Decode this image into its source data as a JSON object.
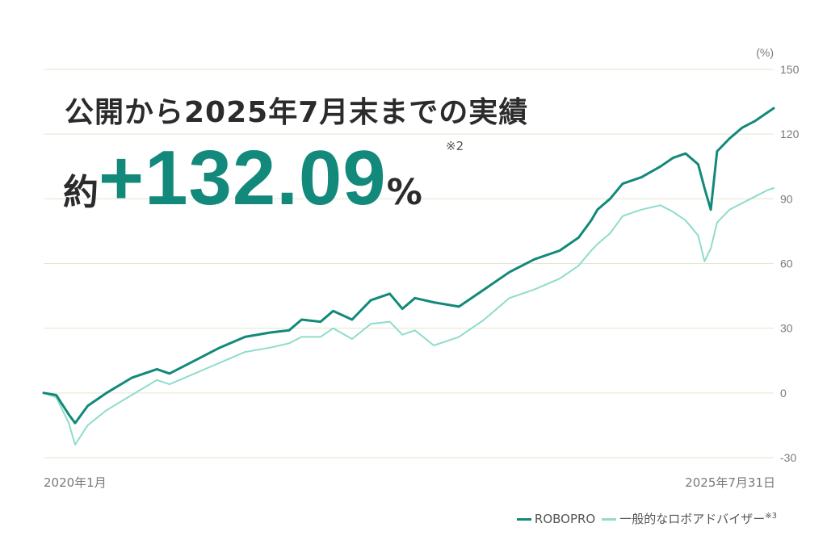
{
  "headline": "公開から2025年7月末までの実績",
  "result": {
    "prefix": "約",
    "value": "+132.09",
    "unit": "%",
    "note": "※2"
  },
  "colors": {
    "robopro": "#12897a",
    "average": "#8fdccb",
    "grid": "#e3e6cf",
    "axis_text": "#7a7a7a"
  },
  "chart_data": {
    "type": "line",
    "title": "",
    "xlabel": "",
    "ylabel": "(%)",
    "ylim": [
      -30,
      150
    ],
    "yticks": [
      "150",
      "120",
      "90",
      "60",
      "30",
      "0",
      "-30"
    ],
    "x_start_label": "2020年1月",
    "x_end_label": "2025年7月31日",
    "grid": true,
    "legend_position": "bottom-right",
    "x": [
      2020.0,
      2020.1,
      2020.2,
      2020.25,
      2020.35,
      2020.5,
      2020.7,
      2020.9,
      2021.0,
      2021.2,
      2021.4,
      2021.6,
      2021.8,
      2021.95,
      2022.05,
      2022.2,
      2022.3,
      2022.45,
      2022.6,
      2022.75,
      2022.85,
      2022.95,
      2023.1,
      2023.3,
      2023.5,
      2023.7,
      2023.9,
      2024.1,
      2024.25,
      2024.35,
      2024.4,
      2024.5,
      2024.6,
      2024.75,
      2024.9,
      2025.0,
      2025.1,
      2025.2,
      2025.25,
      2025.3,
      2025.35,
      2025.45,
      2025.55,
      2025.65,
      2025.75,
      2025.8
    ],
    "series": [
      {
        "name": "ROBOPRO",
        "values": [
          0,
          -1,
          -10,
          -14,
          -6,
          0,
          7,
          11,
          9,
          15,
          21,
          26,
          28,
          29,
          34,
          33,
          38,
          34,
          43,
          46,
          39,
          44,
          42,
          40,
          48,
          56,
          62,
          66,
          72,
          80,
          85,
          90,
          97,
          100,
          105,
          109,
          111,
          106,
          95,
          85,
          112,
          118,
          123,
          126,
          130,
          132
        ]
      },
      {
        "name": "一般的なロボアドバイザー",
        "values": [
          0,
          -2,
          -14,
          -24,
          -15,
          -8,
          -1,
          6,
          4,
          9,
          14,
          19,
          21,
          23,
          26,
          26,
          30,
          25,
          32,
          33,
          27,
          29,
          22,
          26,
          34,
          44,
          48,
          53,
          59,
          66,
          69,
          74,
          82,
          85,
          87,
          84,
          80,
          73,
          61,
          67,
          79,
          85,
          88,
          91,
          94,
          95
        ]
      }
    ]
  },
  "legend": {
    "item1": "ROBOPRO",
    "item2": "一般的なロボアドバイザー",
    "item2_note": "※3"
  }
}
